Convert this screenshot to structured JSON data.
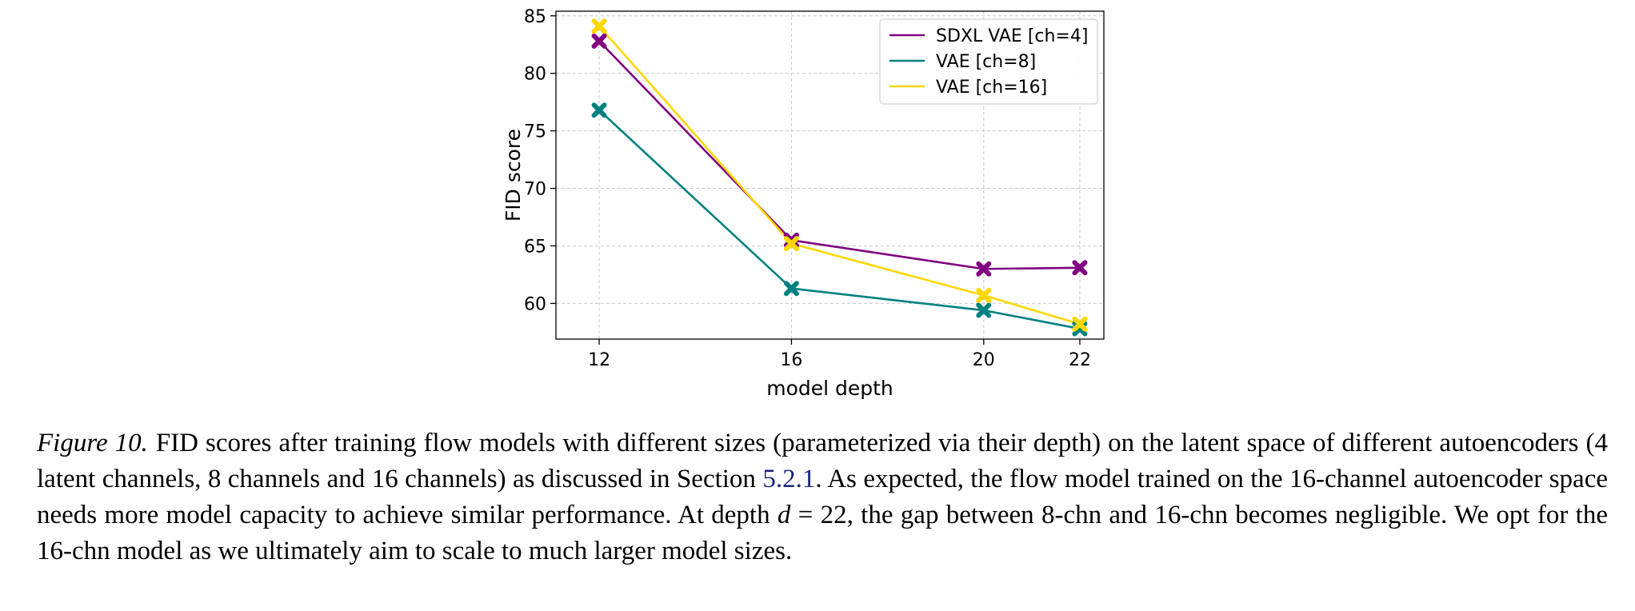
{
  "chart_data": {
    "type": "line",
    "xlabel": "model depth",
    "ylabel": "FID score",
    "x": [
      12,
      16,
      20,
      22
    ],
    "xticks": [
      "12",
      "16",
      "20",
      "22"
    ],
    "yticks": [
      "60",
      "65",
      "70",
      "75",
      "80",
      "85"
    ],
    "xlim": [
      11.1,
      22.5
    ],
    "ylim": [
      56.9,
      85.4
    ],
    "grid": true,
    "legend_position": "top-right",
    "marker": "x",
    "series": [
      {
        "name": "SDXL VAE [ch=4]",
        "color": "#800080",
        "values": [
          82.8,
          65.5,
          63.0,
          63.1
        ]
      },
      {
        "name": "VAE [ch=8]",
        "color": "#008080",
        "values": [
          76.8,
          61.3,
          59.4,
          57.8
        ]
      },
      {
        "name": "VAE [ch=16]",
        "color": "#ffd700",
        "values": [
          84.1,
          65.2,
          60.7,
          58.2
        ]
      }
    ]
  },
  "caption": {
    "label": "Figure 10.",
    "text_part1": "FID scores after training flow models with different sizes (parameterized via their depth) on the latent space of different autoencoders (4 latent channels, 8 channels and 16 channels) as discussed in Section ",
    "section_ref": "5.2.1",
    "text_part2": ". As expected, the flow model trained on the 16-channel autoencoder space needs more model capacity to achieve similar performance. At depth ",
    "math_var": "d",
    "math_rest": " = 22",
    "text_part3": ", the gap between 8-chn and 16-chn becomes negligible. We opt for the 16-chn model as we ultimately aim to scale to much larger model sizes."
  }
}
